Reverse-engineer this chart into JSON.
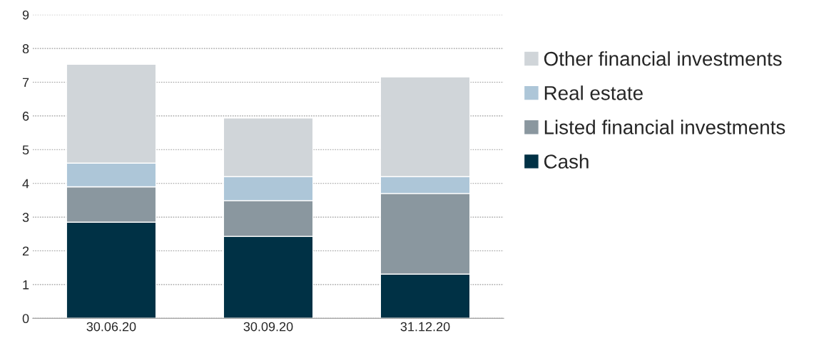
{
  "chart_data": {
    "type": "bar",
    "stacked": true,
    "categories": [
      "30.06.20",
      "30.09.20",
      "31.12.20"
    ],
    "series": [
      {
        "name": "Cash",
        "color": "#003145",
        "values": [
          2.85,
          2.43,
          1.31
        ]
      },
      {
        "name": "Listed financial investments",
        "color": "#8a979f",
        "values": [
          1.05,
          1.06,
          2.39
        ]
      },
      {
        "name": "Real estate",
        "color": "#adc6d8",
        "values": [
          0.7,
          0.71,
          0.5
        ]
      },
      {
        "name": "Other financial investments",
        "color": "#d0d5d9",
        "values": [
          2.93,
          1.74,
          2.96
        ]
      }
    ],
    "ylim": [
      0,
      9
    ],
    "yticks": [
      0,
      1,
      2,
      3,
      4,
      5,
      6,
      7,
      8,
      9
    ],
    "grid": "y",
    "legend": "right"
  }
}
